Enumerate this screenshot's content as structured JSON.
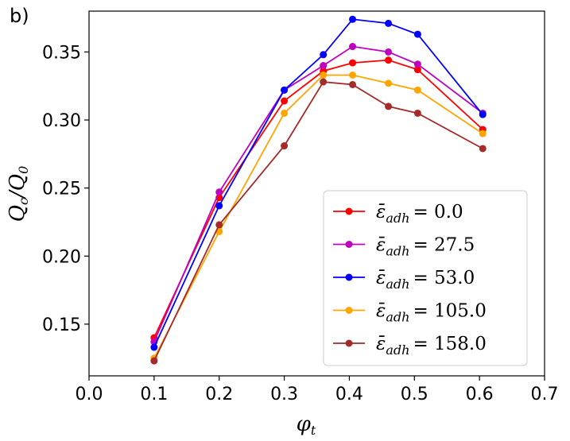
{
  "chart_data": {
    "type": "line",
    "panel_label": "b)",
    "xlabel": "φ",
    "xlabel_sub": "t",
    "ylabel": "Q",
    "ylabel_sub1": "c",
    "ylabel_mid": "/Q",
    "ylabel_sub2": "0",
    "xlim": [
      0.0,
      0.7
    ],
    "ylim": [
      0.112,
      0.38
    ],
    "xticks": [
      0.0,
      0.1,
      0.2,
      0.3,
      0.4,
      0.5,
      0.6,
      0.7
    ],
    "xtick_labels": [
      "0.0",
      "0.1",
      "0.2",
      "0.3",
      "0.4",
      "0.5",
      "0.6",
      "0.7"
    ],
    "yticks": [
      0.15,
      0.2,
      0.25,
      0.3,
      0.35
    ],
    "ytick_labels": [
      "0.15",
      "0.20",
      "0.25",
      "0.30",
      "0.35"
    ],
    "grid": false,
    "legend_position": "lower-right",
    "x": [
      0.1,
      0.2,
      0.3,
      0.36,
      0.405,
      0.46,
      0.505,
      0.605
    ],
    "series": [
      {
        "name": "ε̄ adh = 0.0",
        "symbol": "ε̄",
        "sub": "adh",
        "value_text": "= 0.0",
        "color": "#ff0000",
        "values": [
          0.14,
          0.243,
          0.314,
          0.336,
          0.342,
          0.344,
          0.337,
          0.293
        ]
      },
      {
        "name": "ε̄ adh = 27.5",
        "symbol": "ε̄",
        "sub": "adh",
        "value_text": "= 27.5",
        "color": "#bf00bf",
        "values": [
          0.137,
          0.247,
          0.322,
          0.34,
          0.354,
          0.35,
          0.341,
          0.305
        ]
      },
      {
        "name": "ε̄ adh = 53.0",
        "symbol": "ε̄",
        "sub": "adh",
        "value_text": "= 53.0",
        "color": "#0000ff",
        "values": [
          0.133,
          0.237,
          0.322,
          0.348,
          0.374,
          0.371,
          0.363,
          0.304
        ]
      },
      {
        "name": "ε̄ adh = 105.0",
        "symbol": "ε̄",
        "sub": "adh",
        "value_text": "= 105.0",
        "color": "#ffa500",
        "values": [
          0.125,
          0.218,
          0.305,
          0.333,
          0.333,
          0.327,
          0.322,
          0.29
        ]
      },
      {
        "name": "ε̄ adh = 158.0",
        "symbol": "ε̄",
        "sub": "adh",
        "value_text": "= 158.0",
        "color": "#a52a2a",
        "values": [
          0.123,
          0.223,
          0.281,
          0.328,
          0.326,
          0.31,
          0.305,
          0.279
        ]
      }
    ]
  }
}
